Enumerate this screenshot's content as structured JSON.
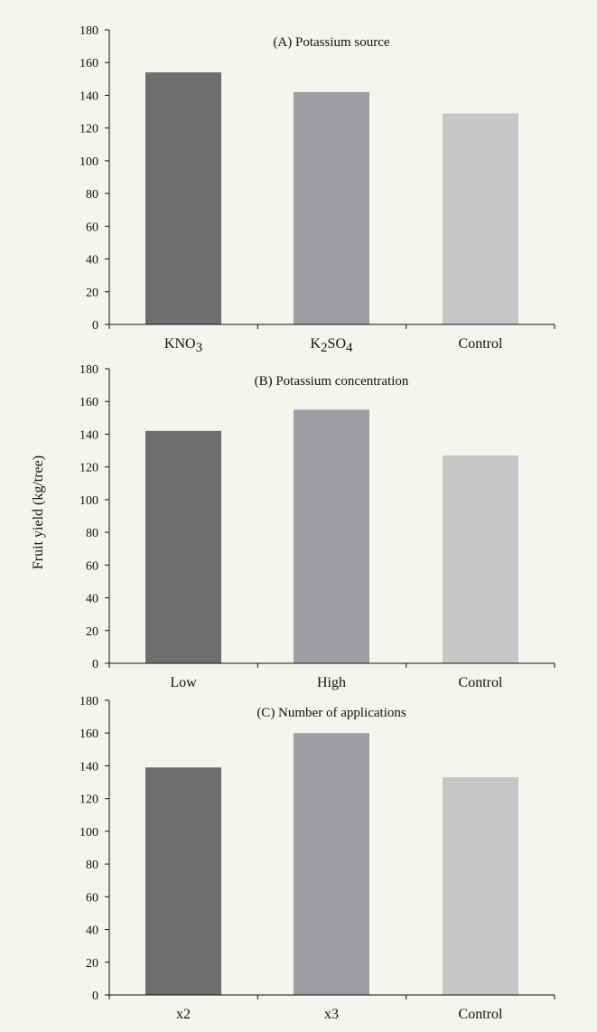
{
  "figure": {
    "ylabel": "Fruit yield (kg/tree)"
  },
  "colors": {
    "background": "#f6f4ef",
    "axis": "#111111",
    "bar_dark": "#6d6e70",
    "bar_mid": "#9d9ea1",
    "bar_light": "#c6c7c9"
  },
  "chart_data": [
    {
      "type": "bar",
      "title": "(A) Potassium source",
      "categories": [
        {
          "label": "KNO",
          "sub": "3",
          "after": ""
        },
        {
          "label": "K",
          "sub": "2",
          "after": "SO",
          "sub2": "4"
        },
        {
          "label": "Control"
        }
      ],
      "values": [
        154,
        142,
        129
      ],
      "ylabel": "Fruit yield (kg/tree)",
      "ylim": [
        0,
        180
      ],
      "yticks": [
        0,
        20,
        40,
        60,
        80,
        100,
        120,
        140,
        160,
        180
      ],
      "grid": false,
      "legend": "none"
    },
    {
      "type": "bar",
      "title": "(B) Potassium concentration",
      "categories": [
        {
          "label": "Low"
        },
        {
          "label": "High"
        },
        {
          "label": "Control"
        }
      ],
      "values": [
        142,
        155,
        127
      ],
      "ylabel": "Fruit yield (kg/tree)",
      "ylim": [
        0,
        180
      ],
      "yticks": [
        0,
        20,
        40,
        60,
        80,
        100,
        120,
        140,
        160,
        180
      ],
      "grid": false,
      "legend": "none"
    },
    {
      "type": "bar",
      "title": "(C) Number of applications",
      "categories": [
        {
          "label": "x2"
        },
        {
          "label": "x3"
        },
        {
          "label": "Control"
        }
      ],
      "values": [
        139,
        160,
        133
      ],
      "ylabel": "Fruit yield (kg/tree)",
      "ylim": [
        0,
        180
      ],
      "yticks": [
        0,
        20,
        40,
        60,
        80,
        100,
        120,
        140,
        160,
        180
      ],
      "grid": false,
      "legend": "none"
    }
  ]
}
